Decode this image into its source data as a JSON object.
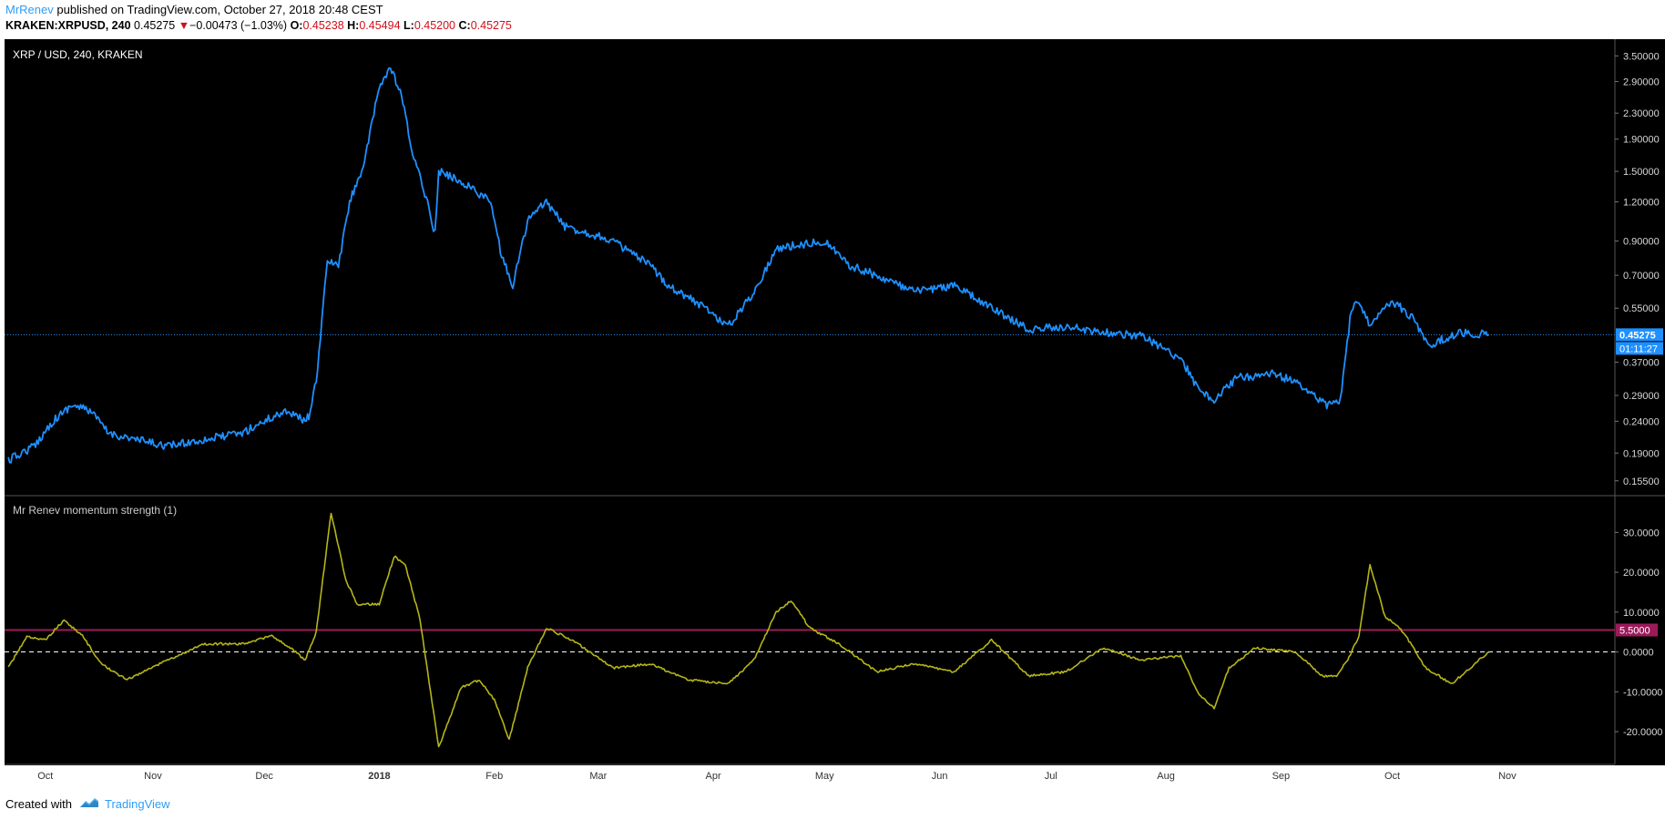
{
  "header": {
    "author": "MrRenev",
    "published": "published on TradingView.com, October 27, 2018 20:48 CEST"
  },
  "symbol_bar": {
    "symbol": "KRAKEN:XRPUSD, 240",
    "last": "0.45275",
    "change": "−0.00473 (−1.03%)",
    "o_label": "O:",
    "o": "0.45238",
    "h_label": "H:",
    "h": "0.45494",
    "l_label": "L:",
    "l": "0.45200",
    "c_label": "C:",
    "c": "0.45275"
  },
  "footer": {
    "created_with": "Created with",
    "brand": "TradingView"
  },
  "colors": {
    "price_line": "#1e90ff",
    "indicator_line": "#b5b51a",
    "threshold_line": "#9b1b5a",
    "background": "#000000"
  },
  "chart_data": [
    {
      "type": "line",
      "title": "XRP / USD, 240, KRAKEN",
      "scale": "log",
      "ylim": [
        0.14,
        3.75
      ],
      "y_ticks": [
        "3.50000",
        "2.90000",
        "2.30000",
        "1.90000",
        "1.50000",
        "1.20000",
        "0.90000",
        "0.70000",
        "0.55000",
        "0.37000",
        "0.29000",
        "0.24000",
        "0.19000",
        "0.15500"
      ],
      "last_price_label": "0.45275",
      "countdown_label": "01:11:27",
      "x_ticks": [
        "Oct",
        "Nov",
        "Dec",
        "2018",
        "Feb",
        "Mar",
        "Apr",
        "May",
        "Jun",
        "Jul",
        "Aug",
        "Sep",
        "Oct",
        "Nov"
      ],
      "x": [
        "2017-09-23",
        "2017-09-30",
        "2017-10-05",
        "2017-10-10",
        "2017-10-15",
        "2017-10-20",
        "2017-10-27",
        "2017-11-05",
        "2017-11-15",
        "2017-11-25",
        "2017-12-01",
        "2017-12-07",
        "2017-12-12",
        "2017-12-13",
        "2017-12-15",
        "2017-12-18",
        "2017-12-21",
        "2017-12-24",
        "2017-12-28",
        "2018-01-01",
        "2018-01-04",
        "2018-01-07",
        "2018-01-10",
        "2018-01-14",
        "2018-01-16",
        "2018-01-17",
        "2018-01-20",
        "2018-01-25",
        "2018-01-31",
        "2018-02-03",
        "2018-02-06",
        "2018-02-10",
        "2018-02-15",
        "2018-02-20",
        "2018-02-27",
        "2018-03-05",
        "2018-03-15",
        "2018-03-20",
        "2018-03-30",
        "2018-04-05",
        "2018-04-12",
        "2018-04-18",
        "2018-04-25",
        "2018-05-01",
        "2018-05-08",
        "2018-05-15",
        "2018-05-25",
        "2018-06-05",
        "2018-06-15",
        "2018-06-25",
        "2018-07-05",
        "2018-07-15",
        "2018-07-25",
        "2018-08-05",
        "2018-08-10",
        "2018-08-14",
        "2018-08-20",
        "2018-08-30",
        "2018-09-05",
        "2018-09-10",
        "2018-09-13",
        "2018-09-17",
        "2018-09-20",
        "2018-09-22",
        "2018-09-25",
        "2018-09-28",
        "2018-10-01",
        "2018-10-06",
        "2018-10-11",
        "2018-10-15",
        "2018-10-20",
        "2018-10-27"
      ],
      "y": [
        0.18,
        0.2,
        0.24,
        0.27,
        0.26,
        0.22,
        0.21,
        0.2,
        0.21,
        0.22,
        0.24,
        0.26,
        0.24,
        0.25,
        0.32,
        0.78,
        0.75,
        1.2,
        1.6,
        2.8,
        3.2,
        2.6,
        1.7,
        1.2,
        0.95,
        1.5,
        1.45,
        1.35,
        1.2,
        0.8,
        0.65,
        1.05,
        1.2,
        1.0,
        0.95,
        0.9,
        0.75,
        0.65,
        0.55,
        0.48,
        0.62,
        0.85,
        0.88,
        0.9,
        0.75,
        0.7,
        0.62,
        0.65,
        0.55,
        0.47,
        0.48,
        0.46,
        0.45,
        0.38,
        0.3,
        0.28,
        0.33,
        0.34,
        0.32,
        0.29,
        0.27,
        0.28,
        0.55,
        0.57,
        0.48,
        0.55,
        0.58,
        0.52,
        0.42,
        0.44,
        0.46,
        0.45275
      ]
    },
    {
      "type": "line",
      "title": "Mr Renev momentum strength (1)",
      "ylim": [
        -28,
        39
      ],
      "y_ticks": [
        "30.0000",
        "20.0000",
        "10.0000",
        "0.0000",
        "-10.0000",
        "-20.0000"
      ],
      "threshold": 5.5,
      "threshold_label": "5.5000",
      "zero_line": 0,
      "x": [
        "2017-09-23",
        "2017-09-28",
        "2017-10-03",
        "2017-10-08",
        "2017-10-13",
        "2017-10-18",
        "2017-10-25",
        "2017-11-05",
        "2017-11-15",
        "2017-11-25",
        "2017-12-03",
        "2017-12-08",
        "2017-12-12",
        "2017-12-15",
        "2017-12-19",
        "2017-12-23",
        "2017-12-26",
        "2018-01-01",
        "2018-01-05",
        "2018-01-08",
        "2018-01-12",
        "2018-01-17",
        "2018-01-23",
        "2018-01-28",
        "2018-02-01",
        "2018-02-05",
        "2018-02-10",
        "2018-02-15",
        "2018-02-22",
        "2018-03-05",
        "2018-03-15",
        "2018-03-25",
        "2018-04-05",
        "2018-04-12",
        "2018-04-18",
        "2018-04-22",
        "2018-04-27",
        "2018-05-05",
        "2018-05-15",
        "2018-05-25",
        "2018-06-05",
        "2018-06-15",
        "2018-06-25",
        "2018-07-05",
        "2018-07-15",
        "2018-07-25",
        "2018-08-05",
        "2018-08-10",
        "2018-08-14",
        "2018-08-18",
        "2018-08-25",
        "2018-09-05",
        "2018-09-12",
        "2018-09-16",
        "2018-09-19",
        "2018-09-22",
        "2018-09-25",
        "2018-09-29",
        "2018-10-04",
        "2018-10-10",
        "2018-10-17",
        "2018-10-27"
      ],
      "y": [
        -4,
        4,
        3,
        8,
        4,
        -3,
        -7,
        -2,
        2,
        2,
        4,
        1,
        -2,
        5,
        35,
        18,
        12,
        12,
        24,
        22,
        8,
        -24,
        -9,
        -7,
        -12,
        -22,
        -4,
        6,
        3,
        -4,
        -3,
        -7,
        -8,
        -2,
        10,
        13,
        6,
        2,
        -5,
        -3,
        -5,
        3,
        -6,
        -5,
        1,
        -2,
        -1,
        -11,
        -14,
        -4,
        1,
        0,
        -6,
        -6,
        -2,
        4,
        22,
        9,
        5,
        -4,
        -8,
        0
      ]
    }
  ]
}
